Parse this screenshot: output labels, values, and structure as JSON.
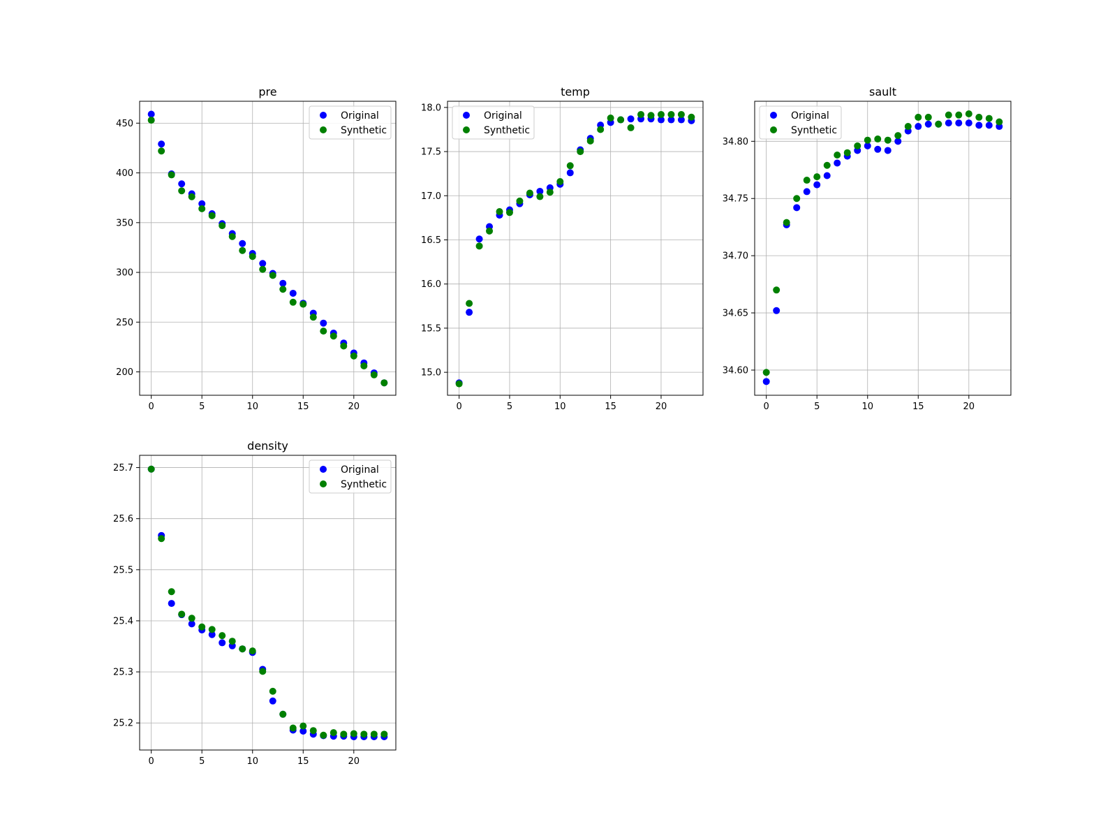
{
  "chart_data": [
    {
      "type": "scatter",
      "title": "pre",
      "xlabel": "",
      "ylabel": "",
      "xlim": [
        -1.15,
        24.15
      ],
      "ylim": [
        176.5,
        472
      ],
      "xticks": [
        0,
        5,
        10,
        15,
        20
      ],
      "yticks": [
        200,
        250,
        300,
        350,
        400,
        450
      ],
      "ytick_labels": [
        "200",
        "250",
        "300",
        "350",
        "400",
        "450"
      ],
      "grid": true,
      "legend": "upper right",
      "series": [
        {
          "name": "Original",
          "color": "#0000ff",
          "x": [
            0,
            1,
            2,
            3,
            4,
            5,
            6,
            7,
            8,
            9,
            10,
            11,
            12,
            13,
            14,
            15,
            16,
            17,
            18,
            19,
            20,
            21,
            22,
            23
          ],
          "y": [
            459,
            429,
            399,
            389,
            379,
            369,
            359,
            349,
            339,
            329,
            319,
            309,
            299,
            289,
            279,
            269,
            259,
            249,
            239,
            229,
            219,
            209,
            199,
            189
          ]
        },
        {
          "name": "Synthetic",
          "color": "#008000",
          "x": [
            0,
            1,
            2,
            3,
            4,
            5,
            6,
            7,
            8,
            9,
            10,
            11,
            12,
            13,
            14,
            15,
            16,
            17,
            18,
            19,
            20,
            21,
            22,
            23
          ],
          "y": [
            453,
            422,
            398,
            382,
            376,
            364,
            357,
            347,
            336,
            322,
            316,
            303,
            297,
            283,
            270,
            268,
            255,
            241,
            236,
            226,
            216,
            206,
            197,
            189
          ]
        }
      ]
    },
    {
      "type": "scatter",
      "title": "temp",
      "xlabel": "",
      "ylabel": "",
      "xlim": [
        -1.15,
        24.15
      ],
      "ylim": [
        14.74,
        18.07
      ],
      "xticks": [
        0,
        5,
        10,
        15,
        20
      ],
      "yticks": [
        15.0,
        15.5,
        16.0,
        16.5,
        17.0,
        17.5,
        18.0
      ],
      "ytick_labels": [
        "15.0",
        "15.5",
        "16.0",
        "16.5",
        "17.0",
        "17.5",
        "18.0"
      ],
      "grid": true,
      "legend": "upper left",
      "series": [
        {
          "name": "Original",
          "color": "#0000ff",
          "x": [
            0,
            1,
            2,
            3,
            4,
            5,
            6,
            7,
            8,
            9,
            10,
            11,
            12,
            13,
            14,
            15,
            16,
            17,
            18,
            19,
            20,
            21,
            22,
            23
          ],
          "y": [
            14.88,
            15.68,
            16.51,
            16.65,
            16.78,
            16.84,
            16.91,
            17.01,
            17.05,
            17.09,
            17.13,
            17.26,
            17.52,
            17.65,
            17.8,
            17.83,
            17.86,
            17.87,
            17.87,
            17.87,
            17.86,
            17.86,
            17.86,
            17.85
          ]
        },
        {
          "name": "Synthetic",
          "color": "#008000",
          "x": [
            0,
            1,
            2,
            3,
            4,
            5,
            6,
            7,
            8,
            9,
            10,
            11,
            12,
            13,
            14,
            15,
            16,
            17,
            18,
            19,
            20,
            21,
            22,
            23
          ],
          "y": [
            14.87,
            15.78,
            16.43,
            16.6,
            16.82,
            16.81,
            16.94,
            17.03,
            16.99,
            17.04,
            17.16,
            17.34,
            17.5,
            17.62,
            17.75,
            17.88,
            17.86,
            17.77,
            17.92,
            17.91,
            17.92,
            17.92,
            17.92,
            17.89
          ]
        }
      ]
    },
    {
      "type": "scatter",
      "title": "sault",
      "xlabel": "",
      "ylabel": "",
      "xlim": [
        -1.15,
        24.15
      ],
      "ylim": [
        34.578,
        34.835
      ],
      "xticks": [
        0,
        5,
        10,
        15,
        20
      ],
      "yticks": [
        34.6,
        34.65,
        34.7,
        34.75,
        34.8
      ],
      "ytick_labels": [
        "34.60",
        "34.65",
        "34.70",
        "34.75",
        "34.80"
      ],
      "grid": true,
      "legend": "upper left",
      "series": [
        {
          "name": "Original",
          "color": "#0000ff",
          "x": [
            0,
            1,
            2,
            3,
            4,
            5,
            6,
            7,
            8,
            9,
            10,
            11,
            12,
            13,
            14,
            15,
            16,
            17,
            18,
            19,
            20,
            21,
            22,
            23
          ],
          "y": [
            34.59,
            34.652,
            34.727,
            34.742,
            34.756,
            34.762,
            34.77,
            34.781,
            34.787,
            34.792,
            34.796,
            34.793,
            34.792,
            34.8,
            34.809,
            34.813,
            34.815,
            34.815,
            34.816,
            34.816,
            34.816,
            34.814,
            34.814,
            34.813
          ]
        },
        {
          "name": "Synthetic",
          "color": "#008000",
          "x": [
            0,
            1,
            2,
            3,
            4,
            5,
            6,
            7,
            8,
            9,
            10,
            11,
            12,
            13,
            14,
            15,
            16,
            17,
            18,
            19,
            20,
            21,
            22,
            23
          ],
          "y": [
            34.598,
            34.67,
            34.729,
            34.75,
            34.766,
            34.769,
            34.779,
            34.788,
            34.79,
            34.796,
            34.801,
            34.802,
            34.801,
            34.805,
            34.813,
            34.821,
            34.821,
            34.815,
            34.823,
            34.823,
            34.824,
            34.821,
            34.82,
            34.817
          ]
        }
      ]
    },
    {
      "type": "scatter",
      "title": "density",
      "xlabel": "",
      "ylabel": "",
      "xlim": [
        -1.15,
        24.15
      ],
      "ylim": [
        25.147,
        25.724
      ],
      "xticks": [
        0,
        5,
        10,
        15,
        20
      ],
      "yticks": [
        25.2,
        25.3,
        25.4,
        25.5,
        25.6,
        25.7
      ],
      "ytick_labels": [
        "25.2",
        "25.3",
        "25.4",
        "25.5",
        "25.6",
        "25.7"
      ],
      "grid": true,
      "legend": "upper right",
      "series": [
        {
          "name": "Original",
          "color": "#0000ff",
          "x": [
            0,
            1,
            2,
            3,
            4,
            5,
            6,
            7,
            8,
            9,
            10,
            11,
            12,
            13,
            14,
            15,
            16,
            17,
            18,
            19,
            20,
            21,
            22,
            23
          ],
          "y": [
            25.697,
            25.567,
            25.434,
            25.412,
            25.394,
            25.382,
            25.373,
            25.357,
            25.351,
            25.345,
            25.338,
            25.305,
            25.243,
            25.217,
            25.186,
            25.184,
            25.178,
            25.175,
            25.174,
            25.174,
            25.173,
            25.173,
            25.173,
            25.173
          ]
        },
        {
          "name": "Synthetic",
          "color": "#008000",
          "x": [
            0,
            1,
            2,
            3,
            4,
            5,
            6,
            7,
            8,
            9,
            10,
            11,
            12,
            13,
            14,
            15,
            16,
            17,
            18,
            19,
            20,
            21,
            22,
            23
          ],
          "y": [
            25.697,
            25.561,
            25.457,
            25.413,
            25.405,
            25.388,
            25.383,
            25.371,
            25.36,
            25.345,
            25.341,
            25.301,
            25.262,
            25.217,
            25.19,
            25.194,
            25.185,
            25.176,
            25.181,
            25.178,
            25.179,
            25.178,
            25.178,
            25.178
          ]
        }
      ]
    }
  ]
}
